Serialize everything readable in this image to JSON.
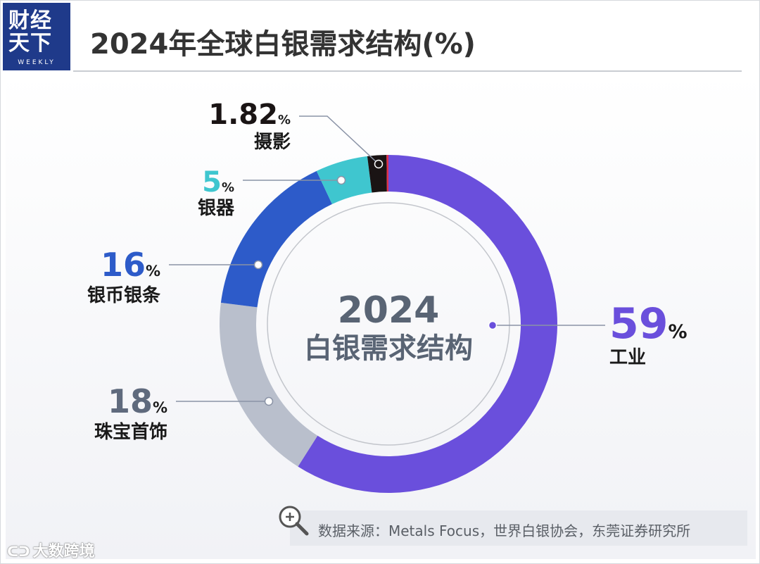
{
  "header": {
    "logo_text": "财经天下",
    "logo_line1": "财经",
    "logo_line2": "天下",
    "logo_sub": "WEEKLY",
    "title": "2024年全球白银需求结构(%)"
  },
  "chart_data": {
    "type": "pie",
    "donut": true,
    "center_label_line1": "2024",
    "center_label_line2": "白银需求结构",
    "slices": [
      {
        "label": "工业",
        "value": 59,
        "value_text": "59",
        "color": "#6a4fdc"
      },
      {
        "label": "珠宝首饰",
        "value": 18,
        "value_text": "18",
        "color": "#b9bfcc"
      },
      {
        "label": "银币银条",
        "value": 16,
        "value_text": "16",
        "color": "#2d5bc9"
      },
      {
        "label": "银器",
        "value": 5,
        "value_text": "5",
        "color": "#3fc6cf"
      },
      {
        "label": "摄影",
        "value": 1.82,
        "value_text": "1.82",
        "color": "#1a1414"
      },
      {
        "label": "",
        "value": 0.18,
        "value_text": "",
        "color": "#e0304a"
      }
    ],
    "unit": "%"
  },
  "footer": {
    "source": "数据来源：Metals Focus，世界白银协会，东莞证券研究所",
    "watermark": "大数跨境"
  },
  "colors": {
    "logo_bg": "#1f3a8a",
    "title": "#333333",
    "leader_line": "#8a93a6"
  }
}
